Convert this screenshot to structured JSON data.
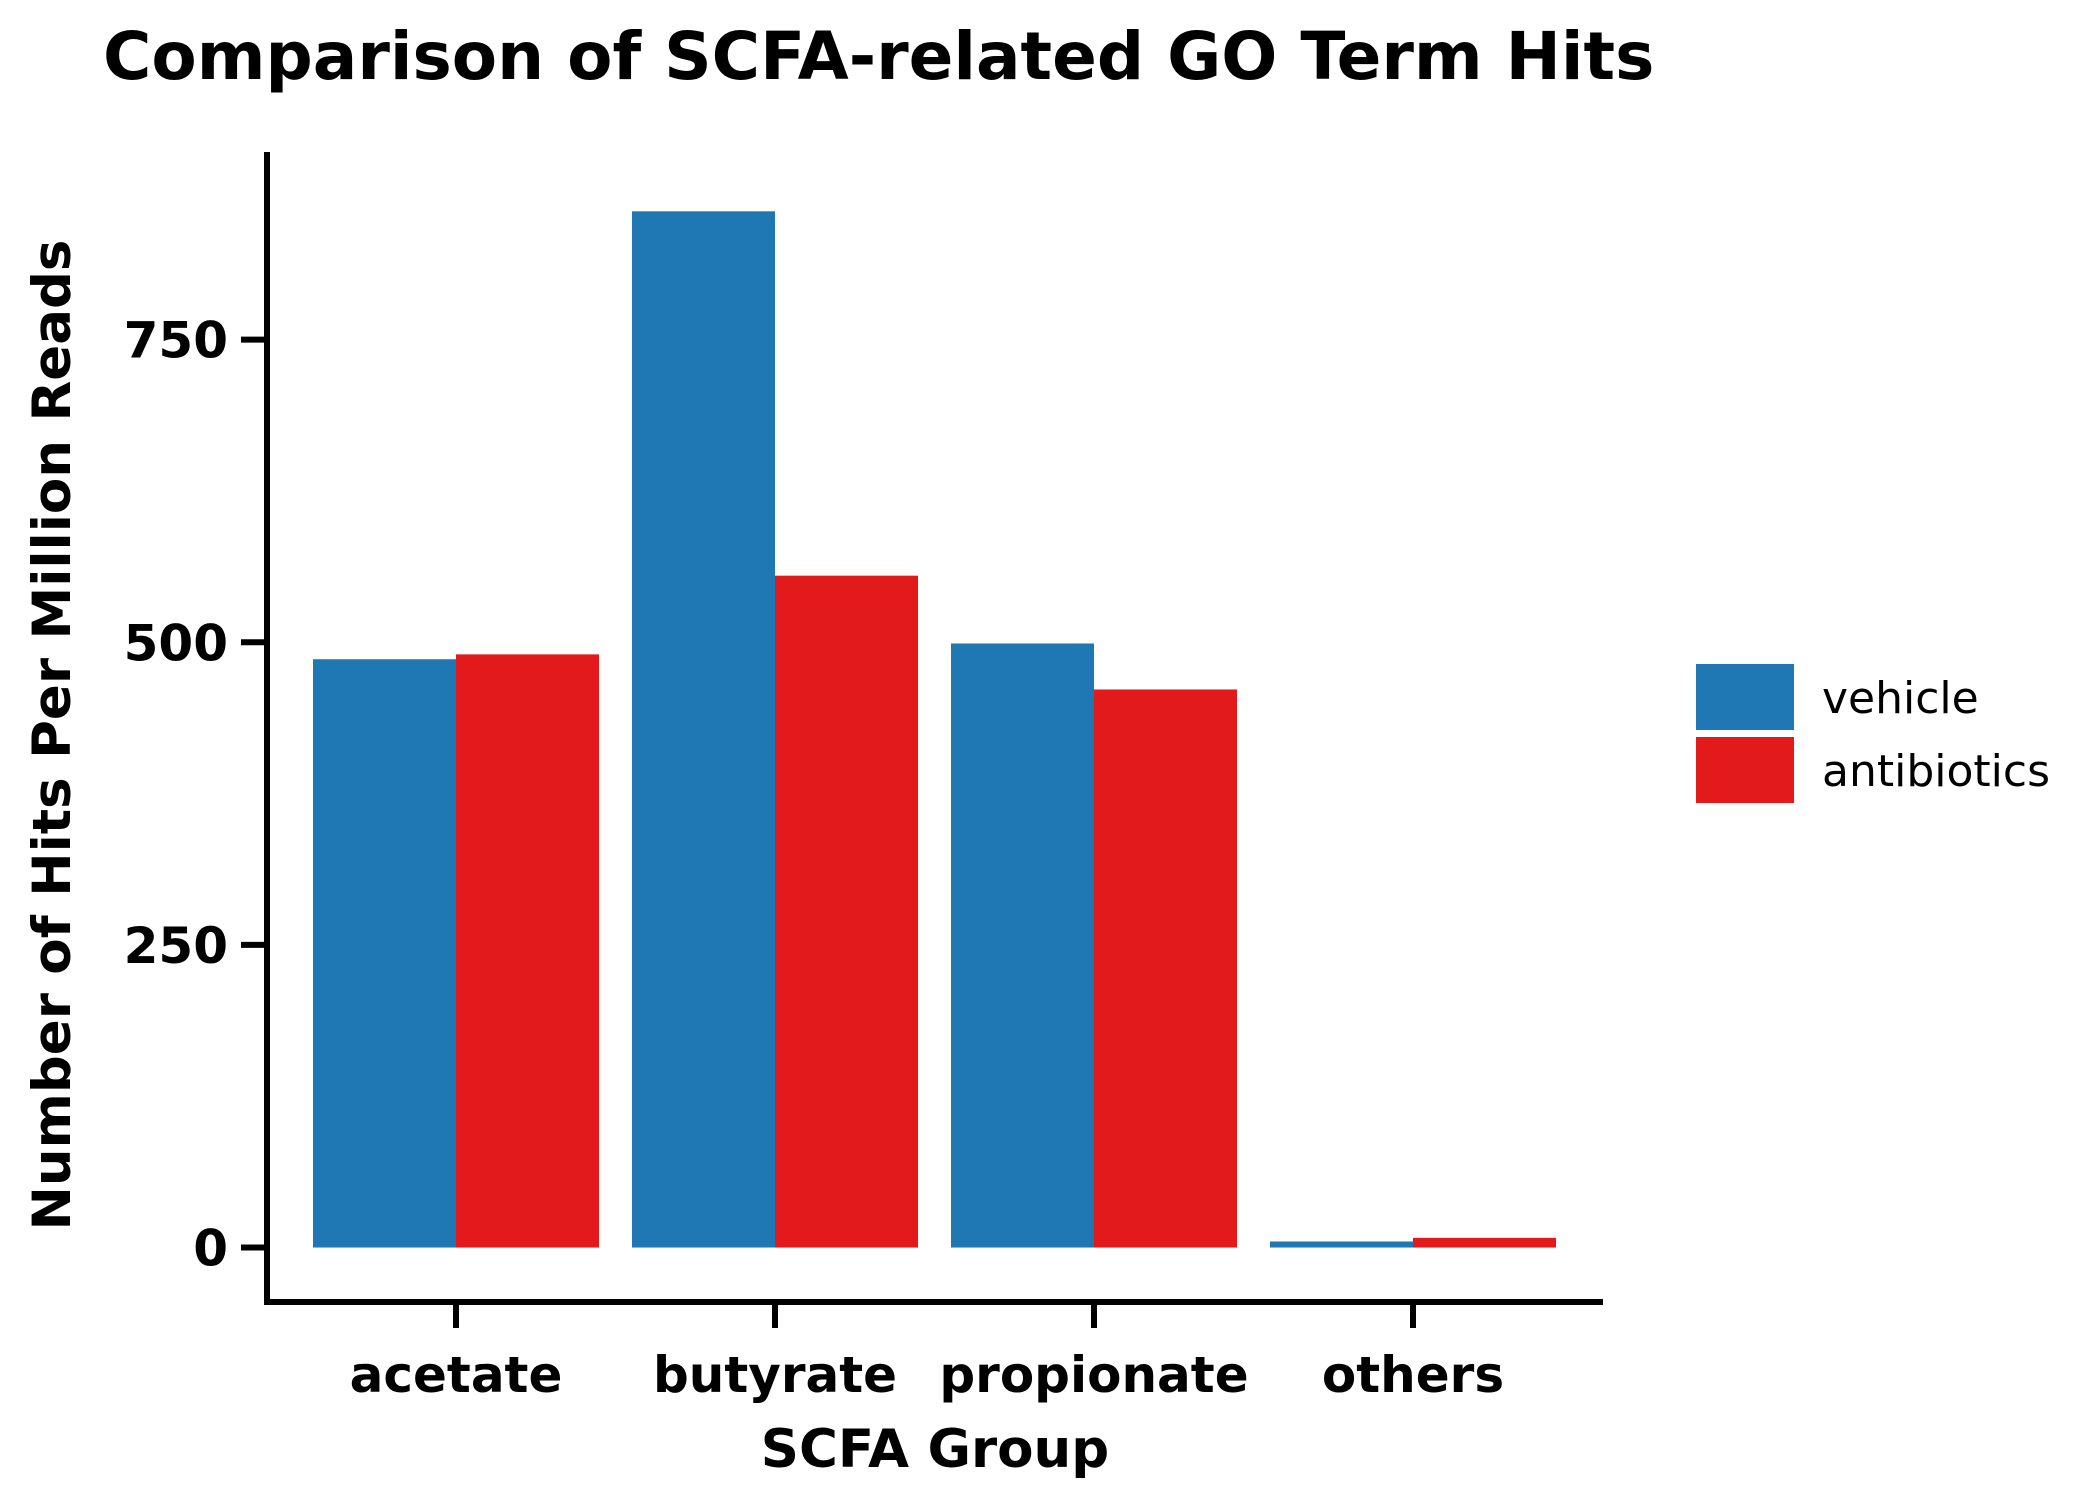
{
  "chart_data": {
    "type": "bar",
    "title": "Comparison of SCFA-related GO Term Hits",
    "xlabel": "SCFA Group",
    "ylabel": "Number of Hits Per Million Reads",
    "categories": [
      "acetate",
      "butyrate",
      "propionate",
      "others"
    ],
    "series": [
      {
        "name": "vehicle",
        "color": "#1f77b4",
        "values": [
          486,
          856,
          499,
          5
        ]
      },
      {
        "name": "antibiotics",
        "color": "#e31a1c",
        "values": [
          490,
          555,
          461,
          8
        ]
      }
    ],
    "ylim": [
      -45,
      905
    ],
    "yticks": [
      "0",
      "250",
      "500",
      "750"
    ],
    "grid": false,
    "legend_position": "right"
  }
}
